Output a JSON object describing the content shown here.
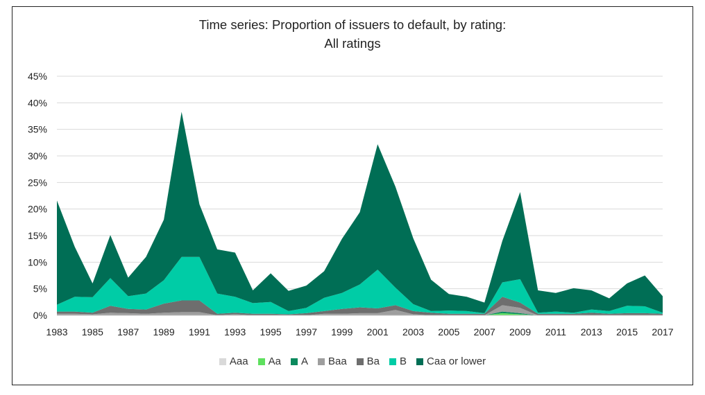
{
  "chart_data": {
    "type": "area",
    "stacked": true,
    "title": "Time series: Proportion of issuers to default, by rating:",
    "subtitle": "All ratings",
    "xlabel": "",
    "ylabel": "",
    "ylim": [
      0,
      45
    ],
    "yticks": [
      "0%",
      "5%",
      "10%",
      "15%",
      "20%",
      "25%",
      "30%",
      "35%",
      "40%",
      "45%"
    ],
    "xlim": [
      1983,
      2017
    ],
    "xticks": [
      1983,
      1985,
      1987,
      1989,
      1991,
      1993,
      1995,
      1997,
      1999,
      2001,
      2003,
      2005,
      2007,
      2009,
      2011,
      2013,
      2015,
      2017
    ],
    "grid": true,
    "legend_position": "bottom",
    "x": [
      1983,
      1984,
      1985,
      1986,
      1987,
      1988,
      1989,
      1990,
      1991,
      1992,
      1993,
      1994,
      1995,
      1996,
      1997,
      1998,
      1999,
      2000,
      2001,
      2002,
      2003,
      2004,
      2005,
      2006,
      2007,
      2008,
      2009,
      2010,
      2011,
      2012,
      2013,
      2014,
      2015,
      2016,
      2017
    ],
    "series": [
      {
        "name": "Aaa",
        "color": "#d9d9d9",
        "values": [
          0,
          0,
          0,
          0,
          0,
          0,
          0,
          0,
          0,
          0,
          0,
          0,
          0,
          0,
          0,
          0,
          0,
          0,
          0,
          0,
          0,
          0,
          0,
          0,
          0,
          0,
          0,
          0,
          0,
          0,
          0,
          0,
          0,
          0,
          0
        ]
      },
      {
        "name": "Aa",
        "color": "#5ee05e",
        "values": [
          0,
          0,
          0,
          0,
          0,
          0,
          0,
          0,
          0,
          0,
          0,
          0,
          0,
          0,
          0,
          0,
          0,
          0,
          0,
          0,
          0,
          0,
          0,
          0,
          0,
          0.4,
          0.2,
          0,
          0,
          0,
          0,
          0,
          0,
          0,
          0
        ]
      },
      {
        "name": "A",
        "color": "#0b8a5e",
        "values": [
          0,
          0,
          0,
          0,
          0,
          0,
          0,
          0,
          0,
          0,
          0,
          0,
          0,
          0,
          0,
          0,
          0,
          0,
          0,
          0,
          0,
          0,
          0,
          0,
          0,
          0.3,
          0.2,
          0,
          0,
          0,
          0,
          0,
          0,
          0,
          0
        ]
      },
      {
        "name": "Baa",
        "color": "#9e9e9e",
        "values": [
          0.3,
          0.3,
          0.2,
          0.5,
          0.4,
          0.3,
          0.5,
          0.6,
          0.6,
          0,
          0.2,
          0,
          0,
          0,
          0,
          0.3,
          0.3,
          0.4,
          0.4,
          1.0,
          0.2,
          0,
          0,
          0,
          0,
          1.2,
          1.0,
          0,
          0,
          0,
          0,
          0,
          0,
          0,
          0
        ]
      },
      {
        "name": "Ba",
        "color": "#6e6e6e",
        "values": [
          0.4,
          0.4,
          0.3,
          1.3,
          0.8,
          0.8,
          1.7,
          2.2,
          2.2,
          0.3,
          0.3,
          0.3,
          0.3,
          0.2,
          0.4,
          0.5,
          0.9,
          1.1,
          0.9,
          0.9,
          0.6,
          0.5,
          0.3,
          0.3,
          0.3,
          1.6,
          1.0,
          0.3,
          0.3,
          0.3,
          0.5,
          0.3,
          0.4,
          0.4,
          0.3
        ]
      },
      {
        "name": "B",
        "color": "#00cca6",
        "values": [
          1.3,
          2.8,
          2.9,
          5.2,
          2.4,
          3.0,
          4.4,
          8.2,
          8.2,
          3.8,
          3.0,
          2.0,
          2.2,
          0.6,
          1.0,
          2.5,
          3.0,
          4.3,
          7.3,
          3.3,
          1.3,
          0.3,
          0.6,
          0.5,
          0.1,
          2.7,
          4.4,
          0.2,
          0.4,
          0.2,
          0.6,
          0.5,
          1.4,
          1.3,
          0.2
        ]
      },
      {
        "name": "Caa or lower",
        "color": "#006e55",
        "values": [
          19.6,
          9.4,
          2.6,
          8.1,
          3.5,
          6.9,
          11.4,
          27.3,
          9.9,
          8.3,
          8.3,
          2.4,
          5.4,
          3.8,
          4.2,
          5.0,
          10.2,
          13.6,
          23.6,
          19.0,
          12.4,
          5.9,
          3.1,
          2.7,
          2.0,
          7.8,
          16.4,
          4.2,
          3.5,
          4.6,
          3.6,
          2.4,
          4.2,
          5.8,
          3.1
        ]
      }
    ]
  }
}
